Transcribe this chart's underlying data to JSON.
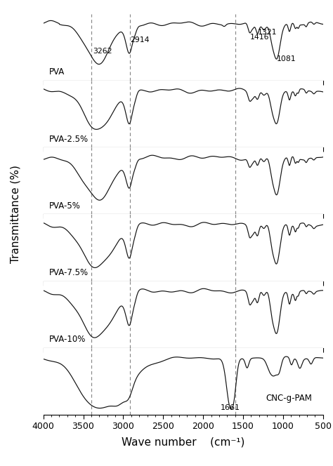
{
  "title": "",
  "xlabel": "Wave number    (cm⁻¹)",
  "ylabel": "Transmittance (%)",
  "xmin": 4000,
  "xmax": 500,
  "labels": [
    "PVA",
    "PVA-2.5%",
    "PVA-5%",
    "PVA-7.5%",
    "PVA-10%",
    "CNC-g-PAM"
  ],
  "dashed_lines": [
    3400,
    2914,
    1600
  ],
  "xticks": [
    4000,
    3500,
    3000,
    2500,
    2000,
    1500,
    1000,
    500
  ],
  "background_color": "#ffffff",
  "line_color": "#111111",
  "dashed_color": "#888888"
}
